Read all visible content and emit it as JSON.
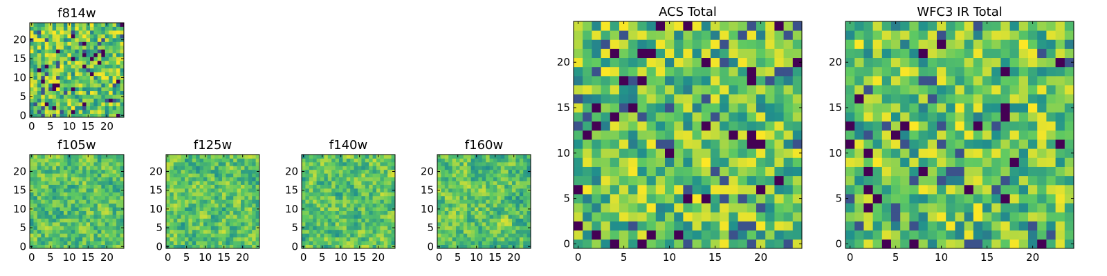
{
  "chart_data": [
    {
      "type": "heatmap",
      "title": "f814w",
      "x_tick_labels": [
        "0",
        "5",
        "10",
        "15",
        "20"
      ],
      "y_tick_labels": [
        "0",
        "5",
        "10",
        "15",
        "20"
      ],
      "grid_size": 25,
      "xlim": [
        0,
        25
      ],
      "ylim": [
        0,
        25
      ],
      "colormap": "viridis",
      "seed": 11
    },
    {
      "type": "heatmap",
      "title": "f105w",
      "x_tick_labels": [
        "0",
        "5",
        "10",
        "15",
        "20"
      ],
      "y_tick_labels": [
        "0",
        "5",
        "10",
        "15",
        "20"
      ],
      "grid_size": 25,
      "xlim": [
        0,
        25
      ],
      "ylim": [
        0,
        25
      ],
      "colormap": "viridis",
      "seed": 23,
      "smooth": true
    },
    {
      "type": "heatmap",
      "title": "f125w",
      "x_tick_labels": [
        "0",
        "5",
        "10",
        "15",
        "20"
      ],
      "y_tick_labels": [
        "0",
        "5",
        "10",
        "15",
        "20"
      ],
      "grid_size": 25,
      "xlim": [
        0,
        25
      ],
      "ylim": [
        0,
        25
      ],
      "colormap": "viridis",
      "seed": 37,
      "smooth": true
    },
    {
      "type": "heatmap",
      "title": "f140w",
      "x_tick_labels": [
        "0",
        "5",
        "10",
        "15",
        "20"
      ],
      "y_tick_labels": [
        "0",
        "5",
        "10",
        "15",
        "20"
      ],
      "grid_size": 25,
      "xlim": [
        0,
        25
      ],
      "ylim": [
        0,
        25
      ],
      "colormap": "viridis",
      "seed": 41,
      "smooth": true
    },
    {
      "type": "heatmap",
      "title": "f160w",
      "x_tick_labels": [
        "0",
        "5",
        "10",
        "15",
        "20"
      ],
      "y_tick_labels": [
        "0",
        "5",
        "10",
        "15",
        "20"
      ],
      "grid_size": 25,
      "xlim": [
        0,
        25
      ],
      "ylim": [
        0,
        25
      ],
      "colormap": "viridis",
      "seed": 53,
      "smooth": true
    },
    {
      "type": "heatmap",
      "title": "ACS Total",
      "x_tick_labels": [
        "0",
        "5",
        "10",
        "15",
        "20"
      ],
      "y_tick_labels": [
        "0",
        "5",
        "10",
        "15",
        "20"
      ],
      "grid_size": 25,
      "xlim": [
        0,
        25
      ],
      "ylim": [
        0,
        25
      ],
      "colormap": "viridis",
      "seed": 67
    },
    {
      "type": "heatmap",
      "title": "WFC3 IR Total",
      "x_tick_labels": [
        "0",
        "5",
        "10",
        "15",
        "20"
      ],
      "y_tick_labels": [
        "0",
        "5",
        "10",
        "15",
        "20"
      ],
      "grid_size": 25,
      "xlim": [
        0,
        25
      ],
      "ylim": [
        0,
        25
      ],
      "colormap": "viridis",
      "seed": 79
    }
  ]
}
